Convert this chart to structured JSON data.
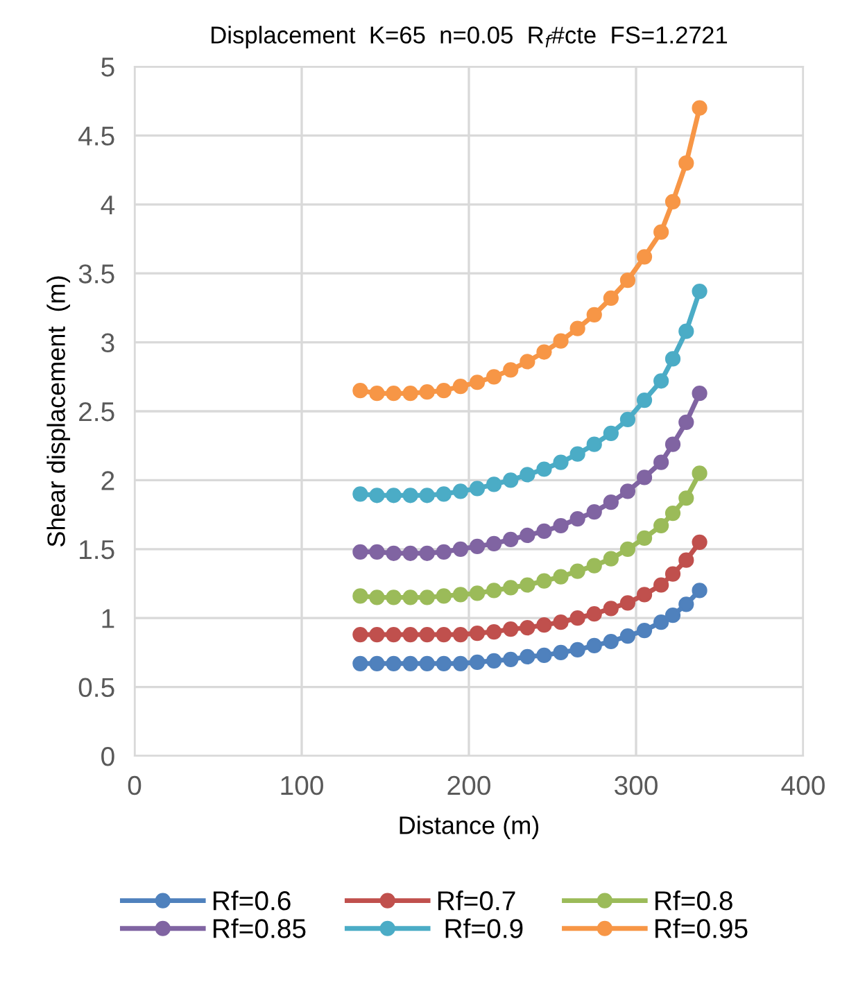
{
  "chart_data": {
    "type": "line",
    "title": "Displacement  K=65  n=0.05  R$_{f}$#cte  FS=1.2721",
    "xlabel": "Distance (m)",
    "ylabel": "Shear displacement  (m)",
    "x": [
      135,
      145,
      155,
      165,
      175,
      185,
      195,
      205,
      215,
      225,
      235,
      245,
      255,
      265,
      275,
      285,
      295,
      305,
      315,
      322,
      330,
      338
    ],
    "xlim": [
      0,
      400
    ],
    "xticks": [
      0,
      100,
      200,
      300,
      400
    ],
    "ylim": [
      0,
      5
    ],
    "yticks": [
      0,
      0.5,
      1,
      1.5,
      2,
      2.5,
      3,
      3.5,
      4,
      4.5,
      5
    ],
    "grid": true,
    "legend": "bottom",
    "marker": "circle",
    "line_style": "solid",
    "series": [
      {
        "name": "Rf=0.6",
        "color": "#4f81bd",
        "values": [
          0.67,
          0.67,
          0.67,
          0.67,
          0.67,
          0.67,
          0.67,
          0.68,
          0.69,
          0.7,
          0.72,
          0.73,
          0.75,
          0.77,
          0.8,
          0.83,
          0.87,
          0.91,
          0.97,
          1.02,
          1.1,
          1.2
        ]
      },
      {
        "name": "Rf=0.7",
        "color": "#c0504d",
        "values": [
          0.88,
          0.88,
          0.88,
          0.88,
          0.88,
          0.88,
          0.88,
          0.89,
          0.9,
          0.92,
          0.93,
          0.95,
          0.97,
          1.0,
          1.03,
          1.07,
          1.11,
          1.17,
          1.24,
          1.32,
          1.42,
          1.55
        ]
      },
      {
        "name": "Rf=0.8",
        "color": "#9bbb59",
        "values": [
          1.16,
          1.15,
          1.15,
          1.15,
          1.15,
          1.16,
          1.17,
          1.18,
          1.2,
          1.22,
          1.24,
          1.27,
          1.3,
          1.34,
          1.38,
          1.43,
          1.5,
          1.58,
          1.67,
          1.76,
          1.87,
          2.05
        ]
      },
      {
        "name": "Rf=0.85",
        "color": "#8064a2",
        "values": [
          1.48,
          1.48,
          1.47,
          1.47,
          1.47,
          1.48,
          1.5,
          1.52,
          1.54,
          1.57,
          1.6,
          1.63,
          1.67,
          1.72,
          1.77,
          1.84,
          1.92,
          2.02,
          2.13,
          2.26,
          2.42,
          2.63
        ]
      },
      {
        "name": " Rf=0.9",
        "color": "#4bacc6",
        "values": [
          1.9,
          1.89,
          1.89,
          1.89,
          1.89,
          1.9,
          1.92,
          1.94,
          1.97,
          2.0,
          2.04,
          2.08,
          2.13,
          2.19,
          2.26,
          2.34,
          2.44,
          2.58,
          2.72,
          2.88,
          3.08,
          3.37
        ]
      },
      {
        "name": "Rf=0.95",
        "color": "#f79646",
        "values": [
          2.65,
          2.63,
          2.63,
          2.63,
          2.64,
          2.65,
          2.68,
          2.71,
          2.75,
          2.8,
          2.86,
          2.93,
          3.01,
          3.1,
          3.2,
          3.32,
          3.45,
          3.62,
          3.8,
          4.02,
          4.3,
          4.7
        ]
      }
    ]
  }
}
